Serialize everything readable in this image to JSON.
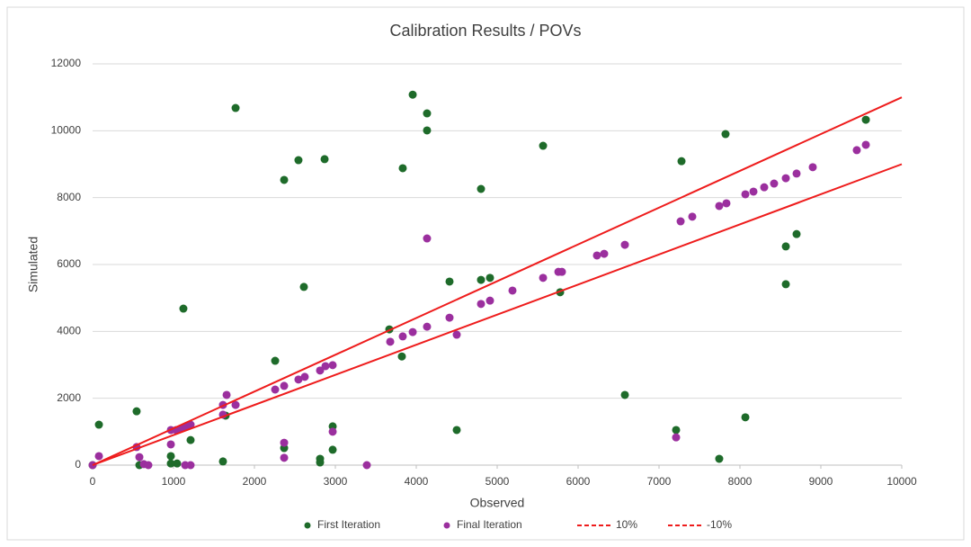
{
  "chart_data": {
    "type": "scatter",
    "title": "Calibration Results / POVs",
    "xlabel": "Observed",
    "ylabel": "Simulated",
    "xlim": [
      0,
      10000
    ],
    "xticks": [
      0,
      1000,
      2000,
      3000,
      4000,
      5000,
      6000,
      7000,
      8000,
      9000,
      10000
    ],
    "ylim": [
      0,
      12000
    ],
    "yticks": [
      0,
      2000,
      4000,
      6000,
      8000,
      10000,
      12000
    ],
    "grid": true,
    "legend": "bottom",
    "series": [
      {
        "name": "First Iteration",
        "color": "#1e6b2a",
        "x": [
          0,
          78,
          544,
          578,
          967,
          967,
          1044,
          1122,
          1211,
          1611,
          1644,
          1767,
          2256,
          2367,
          2367,
          2544,
          2611,
          2811,
          2811,
          2867,
          2967,
          2967,
          3667,
          3833,
          3822,
          3956,
          4133,
          4133,
          4411,
          4500,
          4800,
          4800,
          4911,
          5567,
          5778,
          6578,
          7211,
          7278,
          7744,
          7822,
          8067,
          8567,
          8567,
          8700,
          9556
        ],
        "values": [
          0,
          1210,
          1610,
          0,
          270,
          50,
          50,
          4680,
          750,
          110,
          1480,
          10680,
          3120,
          8530,
          510,
          9120,
          5330,
          190,
          80,
          9150,
          1160,
          460,
          4060,
          8880,
          3250,
          11080,
          10520,
          10010,
          5490,
          1050,
          8260,
          5540,
          5600,
          9550,
          5170,
          2100,
          1050,
          9090,
          190,
          9900,
          1430,
          6540,
          5410,
          6910,
          10330
        ]
      },
      {
        "name": "Final Iteration",
        "color": "#9b2f9e",
        "x": [
          0,
          78,
          544,
          578,
          633,
          689,
          967,
          967,
          1033,
          1100,
          1156,
          1211,
          1144,
          1211,
          1611,
          1611,
          1656,
          1767,
          2256,
          2367,
          2367,
          2367,
          2544,
          2622,
          2811,
          2878,
          2967,
          2967,
          3389,
          3678,
          3833,
          3956,
          4133,
          4133,
          4411,
          4500,
          4800,
          4911,
          5189,
          5567,
          5756,
          5800,
          6233,
          6322,
          6578,
          7211,
          7267,
          7411,
          7744,
          7833,
          8067,
          8167,
          8300,
          8422,
          8567,
          8700,
          8900,
          9444,
          9556
        ],
        "values": [
          0,
          270,
          540,
          240,
          30,
          0,
          1050,
          620,
          1050,
          1100,
          1160,
          1210,
          0,
          0,
          1800,
          1510,
          2100,
          1800,
          2260,
          2370,
          670,
          220,
          2560,
          2640,
          2830,
          2960,
          2990,
          1000,
          0,
          3690,
          3850,
          3980,
          6780,
          4140,
          4410,
          3900,
          4820,
          4920,
          5220,
          5600,
          5780,
          5780,
          6270,
          6320,
          6590,
          830,
          7290,
          7430,
          7750,
          7830,
          8100,
          8180,
          8310,
          8420,
          8580,
          8720,
          8910,
          9420,
          9580
        ]
      },
      {
        "name": "10%",
        "color": "#ee1c1c",
        "type": "line",
        "x": [
          0,
          10000
        ],
        "values": [
          0,
          11000
        ]
      },
      {
        "name": "-10%",
        "color": "#ee1c1c",
        "type": "line",
        "x": [
          0,
          10000
        ],
        "values": [
          0,
          9000
        ]
      }
    ]
  }
}
